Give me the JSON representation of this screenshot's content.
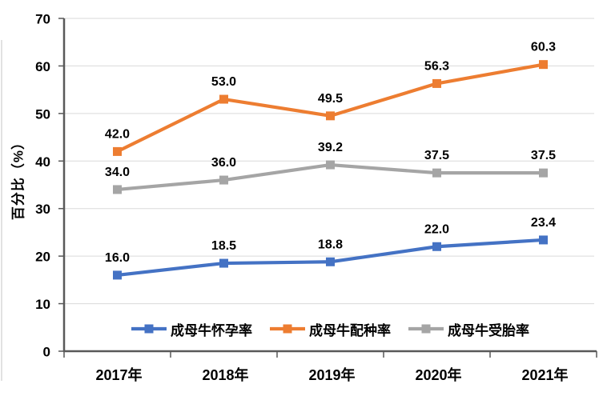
{
  "chart_data": {
    "type": "line",
    "title": "",
    "xlabel": "",
    "ylabel": "百分比（%）",
    "categories": [
      "2017年",
      "2018年",
      "2019年",
      "2020年",
      "2021年"
    ],
    "series": [
      {
        "name": "成母牛怀孕率",
        "color": "#4472C4",
        "values": [
          16.0,
          18.5,
          18.8,
          22.0,
          23.4
        ]
      },
      {
        "name": "成母牛配种率",
        "color": "#ED7D31",
        "values": [
          42.0,
          53.0,
          49.5,
          56.3,
          60.3
        ]
      },
      {
        "name": "成母牛受胎率",
        "color": "#A5A5A5",
        "values": [
          34.0,
          36.0,
          39.2,
          37.5,
          37.5
        ]
      }
    ],
    "ylim": [
      0,
      70
    ],
    "ytick_step": 10,
    "yticks": [
      0,
      10,
      20,
      30,
      40,
      50,
      60,
      70
    ],
    "grid": true,
    "data_labels": true,
    "label_decimals": 1,
    "legend_position": "bottom-inside",
    "marker": "square"
  },
  "style": {
    "axis_color": "#595959",
    "gridline_color": "#DADADA",
    "text_color": "#000000"
  }
}
